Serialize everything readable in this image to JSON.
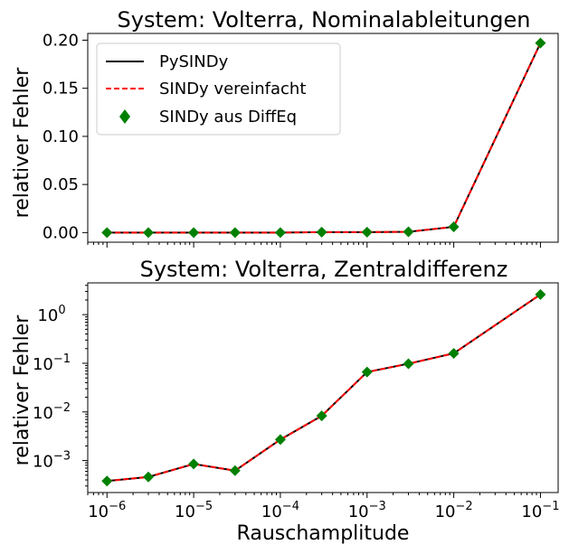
{
  "figure": {
    "xlabel": "Rauschamplitude"
  },
  "chart_data": [
    {
      "type": "line",
      "title": "System: Volterra, Nominalableitungen",
      "xlabel": "",
      "ylabel": "relativer Fehler",
      "xscale": "log",
      "yscale": "linear",
      "xlim": [
        6e-07,
        0.16
      ],
      "ylim": [
        -0.01,
        0.207
      ],
      "yticks": [
        0.0,
        0.05,
        0.1,
        0.15,
        0.2
      ],
      "ytick_labels": [
        "0.00",
        "0.05",
        "0.10",
        "0.15",
        "0.20"
      ],
      "x": [
        1e-06,
        3e-06,
        1e-05,
        3e-05,
        0.0001,
        0.0003,
        0.001,
        0.003,
        0.01,
        0.1
      ],
      "series": [
        {
          "name": "PySINDy",
          "style": "solid-line",
          "color": "#000000",
          "values": [
            0.0,
            0.0,
            0.0,
            0.0,
            0.0,
            0.0005,
            0.0005,
            0.0008,
            0.006,
            0.197
          ]
        },
        {
          "name": "SINDy vereinfacht",
          "style": "dashed-line",
          "color": "#ff0000",
          "values": [
            0.0,
            0.0,
            0.0,
            0.0,
            0.0,
            0.0005,
            0.0005,
            0.0008,
            0.006,
            0.197
          ]
        },
        {
          "name": "SINDy aus DiffEq",
          "style": "diamond-marker",
          "color": "#008000",
          "values": [
            0.0,
            0.0,
            0.0,
            0.0,
            0.0,
            0.0005,
            0.0005,
            0.0008,
            0.006,
            0.197
          ]
        }
      ],
      "legend": "top-left",
      "grid": false
    },
    {
      "type": "line",
      "title": "System: Volterra, Zentraldifferenz",
      "xlabel": "Rauschamplitude",
      "ylabel": "relativer Fehler",
      "xscale": "log",
      "yscale": "log",
      "xlim": [
        6e-07,
        0.16
      ],
      "ylim": [
        0.00022,
        4.5
      ],
      "xticks": [
        1e-06,
        1e-05,
        0.0001,
        0.001,
        0.01,
        0.1
      ],
      "xtick_exponents": [
        "-6",
        "-5",
        "-4",
        "-3",
        "-2",
        "-1"
      ],
      "yticks": [
        0.001,
        0.01,
        0.1,
        1.0
      ],
      "ytick_exponents": [
        "-3",
        "-2",
        "-1",
        "0"
      ],
      "tick_base": "10",
      "x": [
        1e-06,
        3e-06,
        1e-05,
        3e-05,
        0.0001,
        0.0003,
        0.001,
        0.003,
        0.01,
        0.1
      ],
      "series": [
        {
          "name": "PySINDy",
          "style": "solid-line",
          "color": "#000000",
          "values": [
            0.00038,
            0.00046,
            0.00085,
            0.00062,
            0.0027,
            0.0083,
            0.066,
            0.098,
            0.16,
            2.6
          ]
        },
        {
          "name": "SINDy vereinfacht",
          "style": "dashed-line",
          "color": "#ff0000",
          "values": [
            0.00038,
            0.00046,
            0.00085,
            0.00062,
            0.0027,
            0.0083,
            0.066,
            0.098,
            0.16,
            2.6
          ]
        },
        {
          "name": "SINDy aus DiffEq",
          "style": "diamond-marker",
          "color": "#008000",
          "values": [
            0.00038,
            0.00046,
            0.00085,
            0.00062,
            0.0027,
            0.0083,
            0.066,
            0.098,
            0.16,
            2.6
          ]
        }
      ],
      "grid": false
    }
  ]
}
